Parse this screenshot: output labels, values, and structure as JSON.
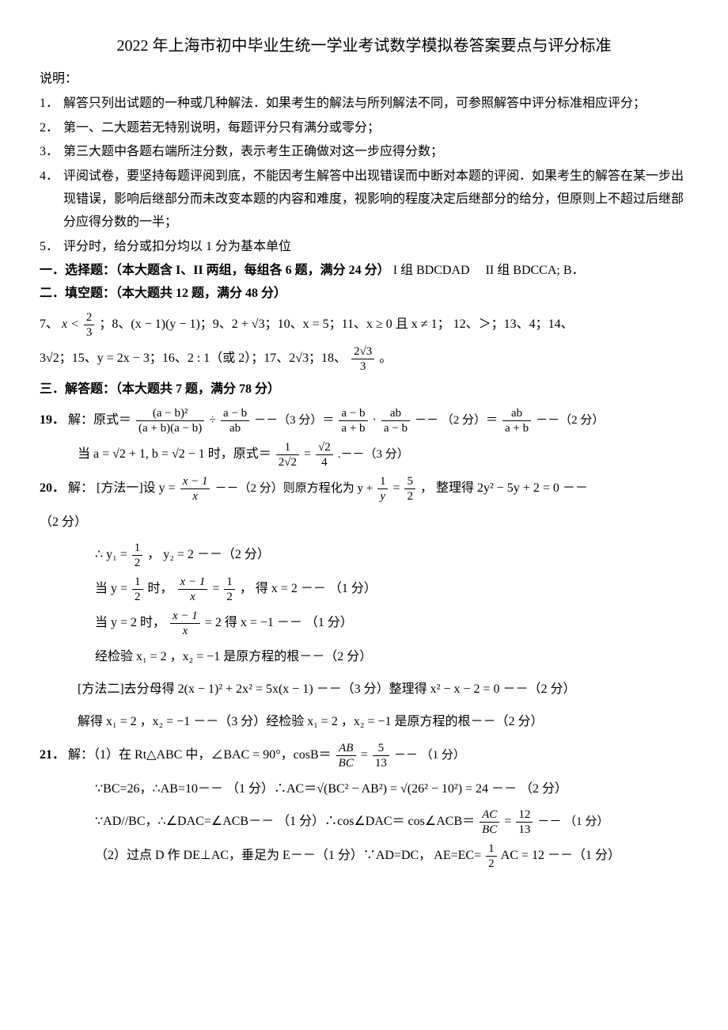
{
  "title": "2022 年上海市初中毕业生统一学业考试数学模拟卷答案要点与评分标准",
  "explain_label": "说明：",
  "instructions": [
    "解答只列出试题的一种或几种解法．如果考生的解法与所列解法不同，可参照解答中评分标准相应评分；",
    "第一、二大题若无特别说明，每题评分只有满分或零分；",
    "第三大题中各题右端所注分数，表示考生正确做对这一步应得分数；",
    "评阅试卷，要坚持每题评阅到底，不能因考生解答中出现错误而中断对本题的评阅．如果考生的解答在某一步出现错误，影响后继部分而未改变本题的内容和难度，视影响的程度决定后继部分的给分，但原则上不超过后继部分应得分数的一半；",
    "评分时，给分或扣分均以 1 分为基本单位"
  ],
  "sec1": {
    "head": "一．选择题：（本大题含 I、II 两组，每组各 6 题，满分 24 分）",
    "g1_label": "I 组",
    "g1_ans": "BDCDAD",
    "g2_label": "II 组",
    "g2_ans": "BDCCA; B．"
  },
  "sec2": {
    "head": "二．填空题：（本大题共 12 题，满分 48 分）",
    "q7_pre": "7、",
    "q7_lhs": "x <",
    "q7_num": "2",
    "q7_den": "3",
    "q8": "；8、(x − 1)(y − 1)；9、2 + √3；10、x = 5；11、x ≥ 0  且 x ≠ 1；  12、＞；13、4；14、",
    "line2a": "3√2；15、y = 2x − 3；16、2 : 1（或 2）；17、2√3；18、",
    "q18_num": "2√3",
    "q18_den": "3",
    "period": "。"
  },
  "sec3": {
    "head": "三．解答题：（本大题共 7 题，满分 78 分）"
  },
  "q19": {
    "label": "19．",
    "pre": "解：原式＝",
    "f1_num": "(a − b)²",
    "f1_den": "(a + b)(a − b)",
    "div": " ÷ ",
    "f2_num": "a − b",
    "f2_den": "ab",
    "s1": "  －－（3 分）＝",
    "f3_num": "a − b",
    "f3_den": "a + b",
    "dot": " · ",
    "f4_num": "ab",
    "f4_den": "a − b",
    "s2": "  －－ （2 分）＝",
    "f5_num": "ab",
    "f5_den": "a + b",
    "s3": "－－（2 分）",
    "sub_pre": "当 a = √2 + 1, b = √2 − 1 时，原式＝",
    "sf1_num": "1",
    "sf1_den": "2√2",
    "eq": " = ",
    "sf2_num": "√2",
    "sf2_den": "4",
    "sub_s": ".－－（3 分）"
  },
  "q20": {
    "label": "20．",
    "m1_pre": "解：  [方法一]设 y = ",
    "m1_f1_num": "x − 1",
    "m1_f1_den": "x",
    "m1_s1": "－－（2 分）则原方程化为 y + ",
    "m1_f2_num": "1",
    "m1_f2_den": "y",
    "m1_eq": " = ",
    "m1_f3_num": "5",
    "m1_f3_den": "2",
    "m1_s2": "，  整理得 2y² − 5y + 2 = 0 －－",
    "m1_s2b": "（2 分）",
    "m1_l2a": "∴ y₁ = ",
    "m1_l2_num": "1",
    "m1_l2_den": "2",
    "m1_l2b": "，  y₂ = 2 －－（2 分）",
    "m1_l3a": "当 y = ",
    "m1_l3_num": "1",
    "m1_l3_den": "2",
    "m1_l3b": " 时，  ",
    "m1_l3_f2num": "x − 1",
    "m1_l3_f2den": "x",
    "m1_l3c": " = ",
    "m1_l3_f3num": "1",
    "m1_l3_f3den": "2",
    "m1_l3d": "  ， 得  x = 2 －－  （1 分）",
    "m1_l4a": "当 y = 2 时，  ",
    "m1_l4_num": "x − 1",
    "m1_l4_den": "x",
    "m1_l4b": " = 2   得  x = −1 －－  （1 分）",
    "m1_l5": "经检验   x₁ = 2 ，x₂ = −1 是原方程的根－－（2 分）",
    "m2_l1": "[方法二]去分母得  2(x − 1)² + 2x² = 5x(x − 1) －－（3 分）整理得  x² − x − 2 = 0 －－（2 分）",
    "m2_l2": "解得   x₁ = 2 ，x₂ = −1 －－（3 分）经检验  x₁ = 2 ，x₂ = −1 是原方程的根－－（2 分）"
  },
  "q21": {
    "label": "21．",
    "l1a": "解：（1）在 Rt△ABC 中，∠BAC = 90°，cosB＝",
    "l1_f1num": "AB",
    "l1_f1den": "BC",
    "l1_eq": " = ",
    "l1_f2num": "5",
    "l1_f2den": "13",
    "l1b": "－－  （1 分）",
    "l2": "∵BC=26，∴AB=10－－  （1 分）∴AC＝√(BC² − AB²) = √(26² − 10²) = 24 －－   （2 分）",
    "l3a": "∵AD//BC，∴∠DAC=∠ACB－－  （1 分）∴cos∠DAC＝ cos∠ACB＝",
    "l3_f1num": "AC",
    "l3_f1den": "BC",
    "l3_eq": " = ",
    "l3_f2num": "12",
    "l3_f2den": "13",
    "l3b": "－－  （1 分）",
    "l4a": "（2）过点 D 作 DE⊥AC，垂足为 E－－（1 分）∵AD=DC， AE=EC=",
    "l4_f1num": "1",
    "l4_f1den": "2",
    "l4b": " AC = 12 －－（1 分）"
  }
}
